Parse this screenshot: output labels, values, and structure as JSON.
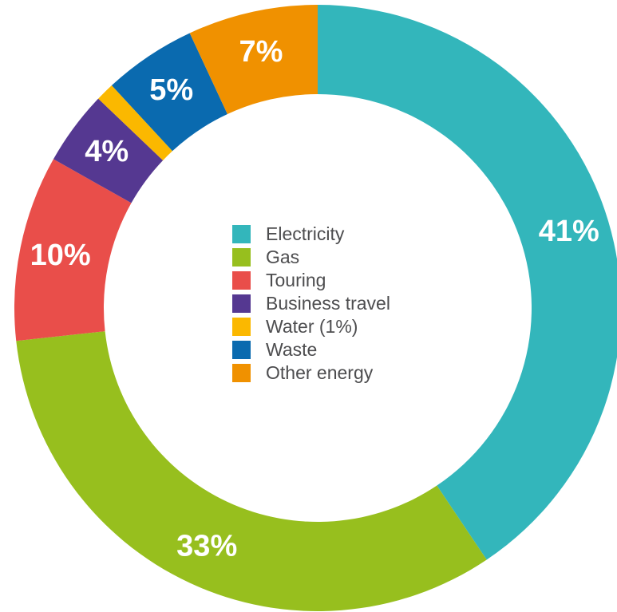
{
  "chart_data": {
    "type": "pie",
    "variant": "donut",
    "start_angle_deg": 0,
    "direction": "clockwise",
    "legend_position": "center",
    "title": "",
    "slices": [
      {
        "name": "Electricity",
        "value": 41,
        "label": "41%",
        "color": "#33b6bb"
      },
      {
        "name": "Gas",
        "value": 33,
        "label": "33%",
        "color": "#97bf1e"
      },
      {
        "name": "Touring",
        "value": 10,
        "label": "10%",
        "color": "#e94e4a"
      },
      {
        "name": "Business travel",
        "value": 4,
        "label": "4%",
        "color": "#553891"
      },
      {
        "name": "Water (1%)",
        "value": 1,
        "label": "",
        "color": "#fbb800"
      },
      {
        "name": "Waste",
        "value": 5,
        "label": "5%",
        "color": "#0a6aaf"
      },
      {
        "name": "Other energy",
        "value": 7,
        "label": "7%",
        "color": "#f09100"
      }
    ]
  }
}
